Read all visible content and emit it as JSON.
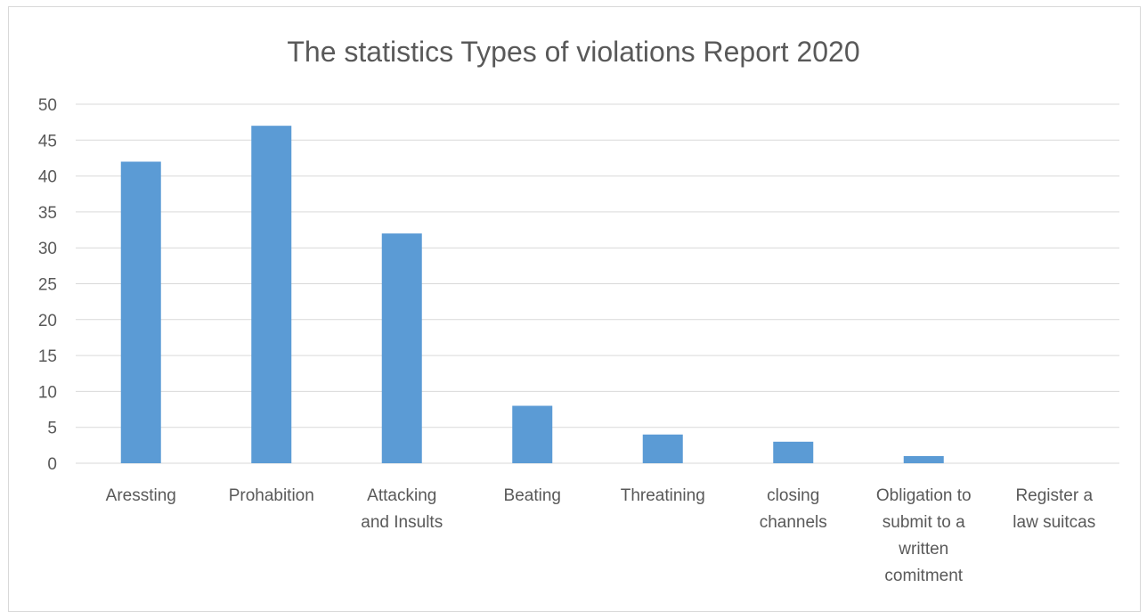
{
  "chart_data": {
    "type": "bar",
    "title": "The statistics Types of violations Report 2020",
    "xlabel": "",
    "ylabel": "",
    "ylim": [
      0,
      50
    ],
    "yticks": [
      "0",
      "5",
      "10",
      "15",
      "20",
      "25",
      "30",
      "35",
      "40",
      "45",
      "50"
    ],
    "grid": true,
    "legend": "none",
    "bar_color": "#5b9bd5",
    "categories": [
      [
        "Aressting"
      ],
      [
        "Prohabition"
      ],
      [
        "Attacking",
        "and Insults"
      ],
      [
        "Beating"
      ],
      [
        "Threatining"
      ],
      [
        "closing",
        "channels"
      ],
      [
        "Obligation to",
        "submit to a",
        "written",
        "comitment"
      ],
      [
        "Register a",
        "law suitcas"
      ]
    ],
    "values": [
      42,
      47,
      32,
      8,
      4,
      3,
      1,
      0
    ]
  }
}
